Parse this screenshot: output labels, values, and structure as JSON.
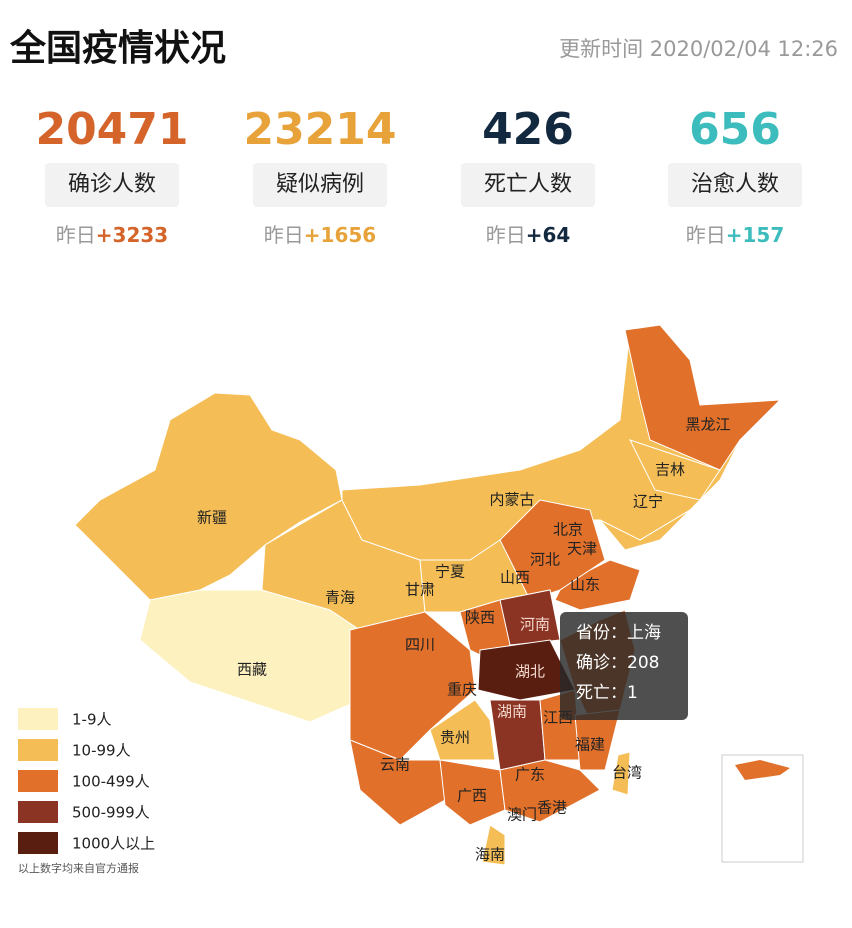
{
  "header": {
    "title": "全国疫情状况",
    "update_time": "更新时间 2020/02/04 12:26"
  },
  "stats": [
    {
      "value": 20471,
      "label": "确诊人数",
      "delta_prefix": "昨日",
      "delta": "+3233"
    },
    {
      "value": 23214,
      "label": "疑似病例",
      "delta_prefix": "昨日",
      "delta": "+1656"
    },
    {
      "value": 426,
      "label": "死亡人数",
      "delta_prefix": "昨日",
      "delta": "+64"
    },
    {
      "value": 656,
      "label": "治愈人数",
      "delta_prefix": "昨日",
      "delta": "+157"
    }
  ],
  "map": {
    "regions": [
      "新疆",
      "西藏",
      "青海",
      "甘肃",
      "宁夏",
      "内蒙古",
      "黑龙江",
      "吉林",
      "辽宁",
      "北京",
      "天津",
      "河北",
      "山西",
      "山东",
      "陕西",
      "河南",
      "四川",
      "重庆",
      "湖北",
      "湖南",
      "江西",
      "福建",
      "贵州",
      "云南",
      "广西",
      "广东",
      "澳门",
      "香港",
      "台湾",
      "海南"
    ],
    "tooltip": {
      "province": "省份：上海",
      "confirmed": "确诊：208",
      "deaths": "死亡：1"
    }
  },
  "legend": [
    "1-9人",
    "10-99人",
    "100-499人",
    "500-999人",
    "1000人以上"
  ],
  "footnote": "以上数字均来自官方通报"
}
